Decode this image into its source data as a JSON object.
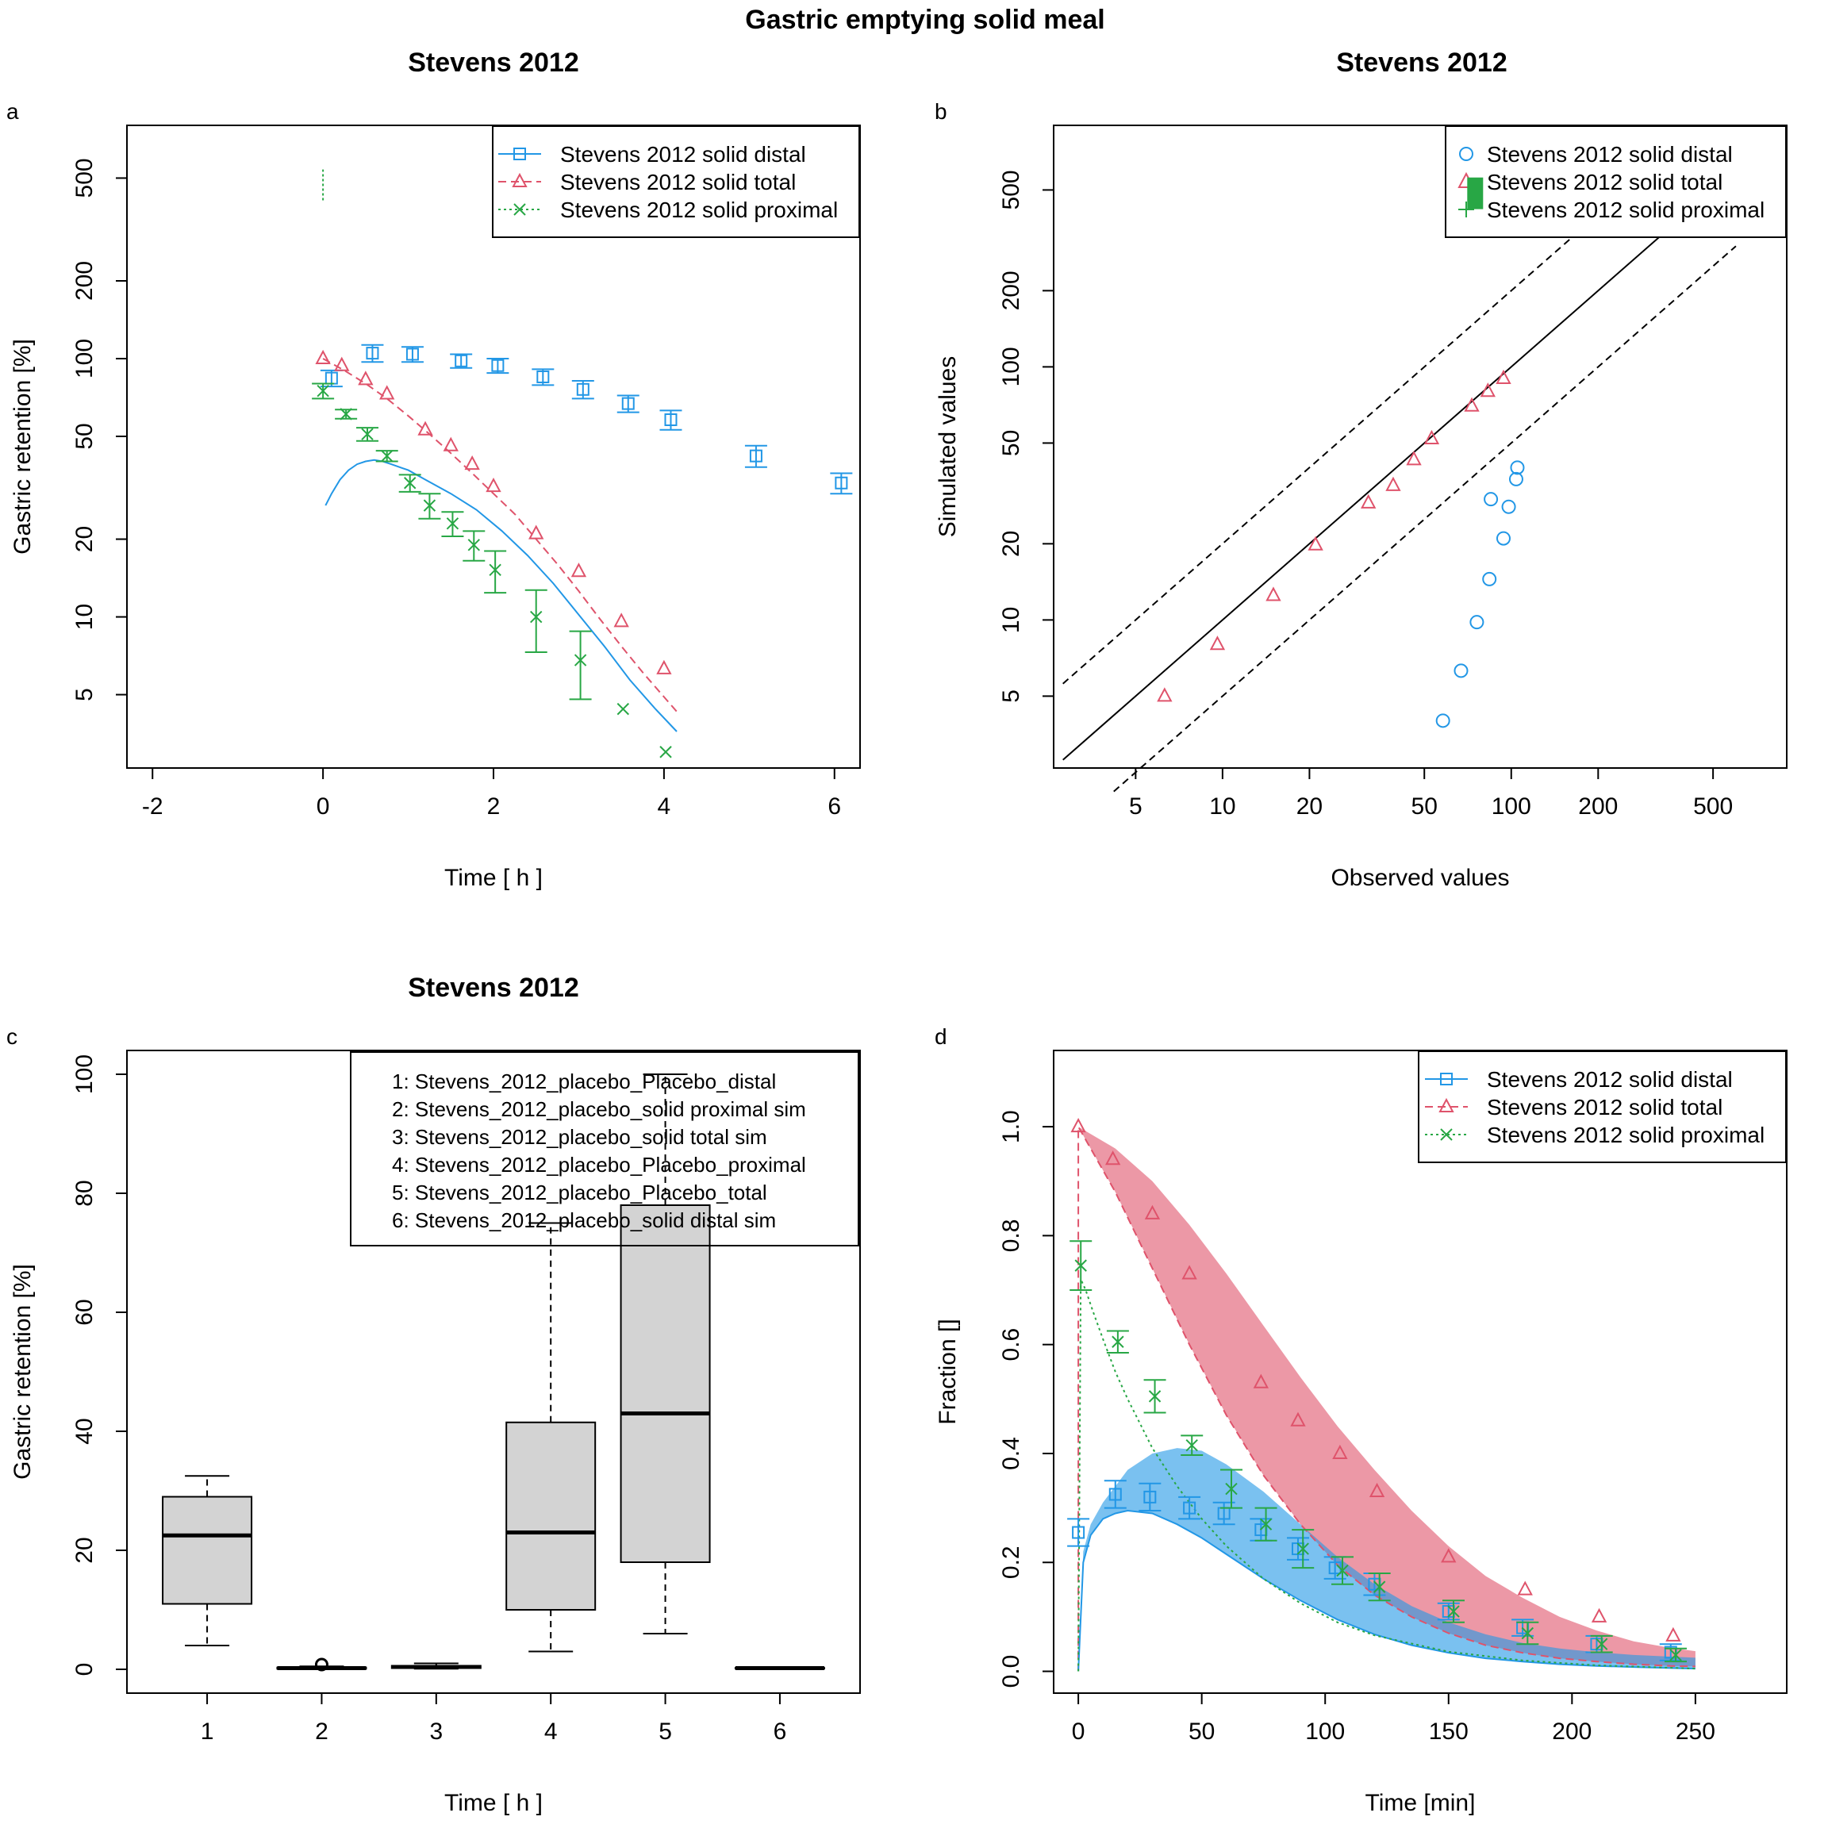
{
  "figure": {
    "title": "Gastric emptying solid meal"
  },
  "colors": {
    "blue": "#2297E6",
    "red": "#DF536B",
    "green": "#28A745",
    "grey": "#D3D3D3",
    "black": "#000000"
  },
  "chart_data": [
    {
      "panel": "a",
      "type": "line",
      "title": "Stevens 2012",
      "xlabel": "Time [ h ]",
      "ylabel": "Gastric retention [%]",
      "xlim": [
        -2.3,
        6.3
      ],
      "ylim": [
        2.6,
        800
      ],
      "ylog": true,
      "xticks": [
        "-2",
        "0",
        "2",
        "4",
        "6"
      ],
      "yticks": [
        "5",
        "10",
        "20",
        "50",
        "100",
        "200",
        "500"
      ],
      "legend": [
        "Stevens 2012 solid distal",
        "Stevens 2012 solid total",
        "Stevens 2012 solid proximal"
      ],
      "legend_position": "top-right",
      "distal_obs": {
        "x": [
          0.1,
          0.58,
          1.05,
          1.62,
          2.05,
          2.58,
          3.05,
          3.58,
          4.08,
          5.08,
          6.08
        ],
        "y": [
          84,
          105,
          104,
          98,
          94,
          85,
          76,
          67,
          58,
          42,
          33
        ],
        "err": [
          6,
          8,
          7,
          6,
          6,
          6,
          6,
          5,
          5,
          4,
          3
        ]
      },
      "total_obs": {
        "x": [
          0.0,
          0.22,
          0.5,
          0.75,
          1.2,
          1.5,
          1.75,
          2.0,
          2.5,
          3.0,
          3.5,
          4.0
        ],
        "y": [
          100,
          94,
          83,
          73,
          53,
          46,
          39,
          32,
          21,
          15,
          9.6,
          6.3
        ]
      },
      "proximal_obs": {
        "x": [
          0.0,
          0.27,
          0.52,
          0.75,
          1.02,
          1.25,
          1.52,
          1.77,
          2.02,
          2.5,
          3.02,
          3.52,
          4.02
        ],
        "y": [
          75,
          61,
          51,
          42,
          33,
          27,
          23,
          19,
          15.2,
          10,
          6.8,
          4.4,
          3.0
        ],
        "err": [
          5,
          2.5,
          3,
          2,
          2.5,
          3,
          2.5,
          2.5,
          2.8,
          2.7,
          2,
          0,
          0
        ]
      },
      "proximal_spike": {
        "x": 0.0,
        "ylow": 410,
        "yhigh": 540
      },
      "distal_sim": {
        "x": [
          0.03,
          0.1,
          0.2,
          0.3,
          0.4,
          0.5,
          0.6,
          0.7,
          0.8,
          1.0,
          1.2,
          1.5,
          1.8,
          2.1,
          2.4,
          2.7,
          3.0,
          3.3,
          3.6,
          3.9,
          4.15
        ],
        "y": [
          27,
          30,
          34,
          37,
          39,
          40,
          40.5,
          40,
          39,
          37,
          34,
          30,
          26,
          21.5,
          17.3,
          13.5,
          10.2,
          7.7,
          5.7,
          4.4,
          3.6
        ]
      },
      "total_sim": {
        "x": [
          0.0,
          0.25,
          0.5,
          0.75,
          1.0,
          1.25,
          1.5,
          1.75,
          2.0,
          2.25,
          2.5,
          2.75,
          3.0,
          3.25,
          3.5,
          3.75,
          4.0,
          4.15
        ],
        "y": [
          100,
          90,
          80,
          70,
          60,
          51,
          43,
          36,
          30,
          25,
          20,
          16,
          12.6,
          9.8,
          7.7,
          6.1,
          4.9,
          4.3
        ]
      }
    },
    {
      "panel": "b",
      "type": "scatter",
      "title": "Stevens 2012",
      "xlabel": "Observed values",
      "ylabel": "Simulated values",
      "xlim": [
        2.6,
        900
      ],
      "ylim": [
        2.6,
        900
      ],
      "xlog": true,
      "ylog": true,
      "xticks": [
        "5",
        "10",
        "20",
        "50",
        "100",
        "200",
        "500"
      ],
      "yticks": [
        "5",
        "10",
        "20",
        "50",
        "100",
        "200",
        "500"
      ],
      "legend": [
        "Stevens 2012 solid distal",
        "Stevens 2012 solid total",
        "Stevens 2012 solid proximal"
      ],
      "legend_position": "top-right",
      "distal": {
        "x": [
          58,
          67,
          76,
          84,
          85,
          94,
          98,
          104,
          105
        ],
        "y": [
          4.0,
          6.3,
          9.8,
          14.5,
          30,
          21,
          28,
          36,
          40
        ]
      },
      "total": {
        "x": [
          6.3,
          9.6,
          15,
          21,
          32,
          39,
          46,
          53,
          73,
          83,
          94
        ],
        "y": [
          5.0,
          8.0,
          12.5,
          19.8,
          29,
          34,
          43,
          52,
          70,
          80,
          90
        ]
      },
      "proximal_marker": {
        "x": 75,
        "ylow": 420,
        "yhigh": 560
      },
      "identity": {
        "x": [
          2.8,
          600
        ]
      },
      "fold_lines": [
        2,
        0.5
      ]
    },
    {
      "panel": "c",
      "type": "boxplot",
      "title": "Stevens 2012",
      "xlabel": "Time [ h ]",
      "ylabel": "Gastric retention [%]",
      "ylim": [
        -4,
        104
      ],
      "xticks": [
        "1",
        "2",
        "3",
        "4",
        "5",
        "6"
      ],
      "yticks": [
        "0",
        "20",
        "40",
        "60",
        "80",
        "100"
      ],
      "legend": [
        "1: Stevens_2012_placebo_Placebo_distal",
        "2: Stevens_2012_placebo_solid proximal sim",
        "3: Stevens_2012_placebo_solid total sim",
        "4: Stevens_2012_placebo_Placebo_proximal",
        "5: Stevens_2012_placebo_Placebo_total",
        "6: Stevens_2012_placebo_solid distal sim"
      ],
      "legend_position": "top-right",
      "boxes": [
        {
          "min": 4,
          "q1": 11,
          "median": 22.5,
          "q3": 29,
          "max": 32.5,
          "outliers": []
        },
        {
          "min": 0.05,
          "q1": 0.1,
          "median": 0.2,
          "q3": 0.3,
          "max": 0.5,
          "outliers": [
            0.8
          ]
        },
        {
          "min": 0.1,
          "q1": 0.2,
          "median": 0.4,
          "q3": 0.6,
          "max": 1.0,
          "outliers": []
        },
        {
          "min": 3,
          "q1": 10,
          "median": 23,
          "q3": 41.5,
          "max": 75,
          "outliers": []
        },
        {
          "min": 6,
          "q1": 18,
          "median": 43,
          "q3": 78,
          "max": 100,
          "outliers": []
        },
        {
          "min": 0.1,
          "q1": 0.15,
          "median": 0.2,
          "q3": 0.25,
          "max": 0.3,
          "outliers": []
        }
      ]
    },
    {
      "panel": "d",
      "type": "line",
      "title": "",
      "xlabel": "Time [min]",
      "ylabel": "Fraction []",
      "xlim": [
        -10,
        287
      ],
      "ylim": [
        -0.04,
        1.14
      ],
      "xticks": [
        "0",
        "50",
        "100",
        "150",
        "200",
        "250"
      ],
      "yticks": [
        "0.0",
        "0.2",
        "0.4",
        "0.6",
        "0.8",
        "1.0"
      ],
      "legend": [
        "Stevens 2012 solid distal",
        "Stevens 2012 solid total",
        "Stevens 2012 solid proximal"
      ],
      "legend_position": "top-right",
      "total_band": {
        "x": [
          0,
          15,
          30,
          45,
          60,
          75,
          90,
          105,
          120,
          135,
          150,
          165,
          180,
          195,
          210,
          225,
          240,
          250
        ],
        "upper": [
          1.0,
          0.96,
          0.9,
          0.82,
          0.73,
          0.635,
          0.54,
          0.45,
          0.37,
          0.295,
          0.23,
          0.175,
          0.135,
          0.1,
          0.075,
          0.055,
          0.043,
          0.037
        ],
        "lower": [
          1.0,
          0.88,
          0.74,
          0.6,
          0.47,
          0.36,
          0.27,
          0.195,
          0.14,
          0.1,
          0.07,
          0.048,
          0.034,
          0.024,
          0.018,
          0.013,
          0.01,
          0.009
        ]
      },
      "distal_band": {
        "x": [
          0,
          2,
          5,
          10,
          15,
          20,
          30,
          40,
          50,
          60,
          75,
          90,
          105,
          120,
          135,
          150,
          165,
          180,
          195,
          210,
          225,
          240,
          250
        ],
        "upper": [
          0.0,
          0.22,
          0.27,
          0.31,
          0.34,
          0.37,
          0.4,
          0.41,
          0.405,
          0.38,
          0.33,
          0.27,
          0.21,
          0.16,
          0.12,
          0.09,
          0.068,
          0.052,
          0.042,
          0.035,
          0.03,
          0.027,
          0.025
        ],
        "lower": [
          0.0,
          0.2,
          0.25,
          0.28,
          0.29,
          0.295,
          0.29,
          0.27,
          0.245,
          0.215,
          0.17,
          0.13,
          0.095,
          0.068,
          0.048,
          0.034,
          0.024,
          0.018,
          0.013,
          0.01,
          0.008,
          0.006,
          0.005
        ]
      },
      "proximal_sim": {
        "x": [
          0,
          1,
          3,
          6,
          10,
          15,
          20,
          30,
          40,
          50,
          60,
          75,
          90,
          105,
          120,
          150,
          180,
          210,
          250
        ],
        "y": [
          0.0,
          0.72,
          0.7,
          0.66,
          0.61,
          0.55,
          0.5,
          0.41,
          0.34,
          0.28,
          0.23,
          0.17,
          0.125,
          0.09,
          0.066,
          0.036,
          0.02,
          0.011,
          0.005
        ]
      },
      "distal_obs": {
        "x": [
          0,
          15,
          29,
          45,
          59,
          74,
          89,
          104,
          120,
          150,
          180,
          210,
          240
        ],
        "y": [
          0.255,
          0.325,
          0.32,
          0.3,
          0.29,
          0.26,
          0.225,
          0.19,
          0.16,
          0.11,
          0.08,
          0.05,
          0.035
        ],
        "err": [
          0.025,
          0.025,
          0.025,
          0.02,
          0.02,
          0.02,
          0.02,
          0.02,
          0.02,
          0.015,
          0.015,
          0.015,
          0.015
        ]
      },
      "total_obs": {
        "x": [
          0,
          14,
          30,
          45,
          74,
          89,
          106,
          121,
          150,
          181,
          211,
          241
        ],
        "y": [
          1.0,
          0.94,
          0.84,
          0.73,
          0.53,
          0.46,
          0.4,
          0.33,
          0.21,
          0.15,
          0.1,
          0.065
        ]
      },
      "proximal_obs": {
        "x": [
          1,
          16,
          31,
          46,
          62,
          76,
          91,
          107,
          122,
          152,
          182,
          212,
          242
        ],
        "y": [
          0.745,
          0.605,
          0.505,
          0.415,
          0.335,
          0.27,
          0.225,
          0.185,
          0.155,
          0.11,
          0.07,
          0.05,
          0.03
        ],
        "err": [
          0.045,
          0.02,
          0.03,
          0.018,
          0.035,
          0.03,
          0.035,
          0.025,
          0.025,
          0.02,
          0.02,
          0.015,
          0.012
        ]
      }
    }
  ],
  "panel_labels": [
    "a",
    "b",
    "c",
    "d"
  ]
}
